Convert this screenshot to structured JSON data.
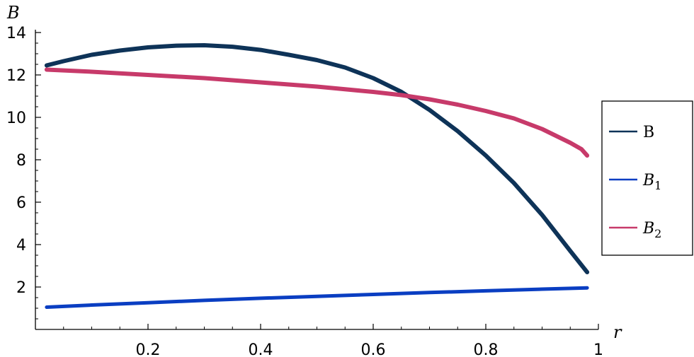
{
  "chart_data": {
    "type": "line",
    "xlabel": "r",
    "ylabel": "B",
    "xlim": [
      0,
      1
    ],
    "ylim": [
      0,
      14
    ],
    "x_ticks": [
      0.2,
      0.4,
      0.6,
      0.8,
      1
    ],
    "x_tick_labels": [
      "0.2",
      "0.4",
      "0.6",
      "0.8",
      "1"
    ],
    "y_ticks": [
      2,
      4,
      6,
      8,
      10,
      12,
      14
    ],
    "y_tick_labels": [
      "2",
      "4",
      "6",
      "8",
      "10",
      "12",
      "14"
    ],
    "legend_position": "right",
    "series": [
      {
        "name": "B",
        "legend_main": "B",
        "legend_sub": "",
        "italic": false,
        "color": "#0e3358",
        "width": 6,
        "x": [
          0.02,
          0.05,
          0.1,
          0.15,
          0.2,
          0.25,
          0.3,
          0.35,
          0.4,
          0.45,
          0.5,
          0.55,
          0.6,
          0.65,
          0.7,
          0.75,
          0.8,
          0.85,
          0.9,
          0.95,
          0.98
        ],
        "y": [
          12.45,
          12.65,
          12.95,
          13.15,
          13.3,
          13.38,
          13.4,
          13.33,
          13.18,
          12.95,
          12.7,
          12.35,
          11.85,
          11.2,
          10.35,
          9.35,
          8.2,
          6.9,
          5.4,
          3.7,
          2.7
        ]
      },
      {
        "name": "B1",
        "legend_main": "B",
        "legend_sub": "1",
        "italic": true,
        "color": "#0a3ec2",
        "width": 5,
        "x": [
          0.02,
          0.1,
          0.2,
          0.3,
          0.4,
          0.5,
          0.6,
          0.7,
          0.8,
          0.9,
          0.98
        ],
        "y": [
          1.05,
          1.15,
          1.26,
          1.37,
          1.47,
          1.56,
          1.65,
          1.74,
          1.82,
          1.9,
          1.96
        ]
      },
      {
        "name": "B2",
        "legend_main": "B",
        "legend_sub": "2",
        "italic": true,
        "color": "#c73a6a",
        "width": 6,
        "x": [
          0.02,
          0.1,
          0.2,
          0.3,
          0.4,
          0.5,
          0.6,
          0.65,
          0.7,
          0.75,
          0.8,
          0.85,
          0.9,
          0.95,
          0.97,
          0.98
        ],
        "y": [
          12.25,
          12.15,
          12.0,
          11.85,
          11.65,
          11.45,
          11.2,
          11.05,
          10.85,
          10.6,
          10.3,
          9.95,
          9.45,
          8.8,
          8.5,
          8.2
        ]
      }
    ]
  }
}
